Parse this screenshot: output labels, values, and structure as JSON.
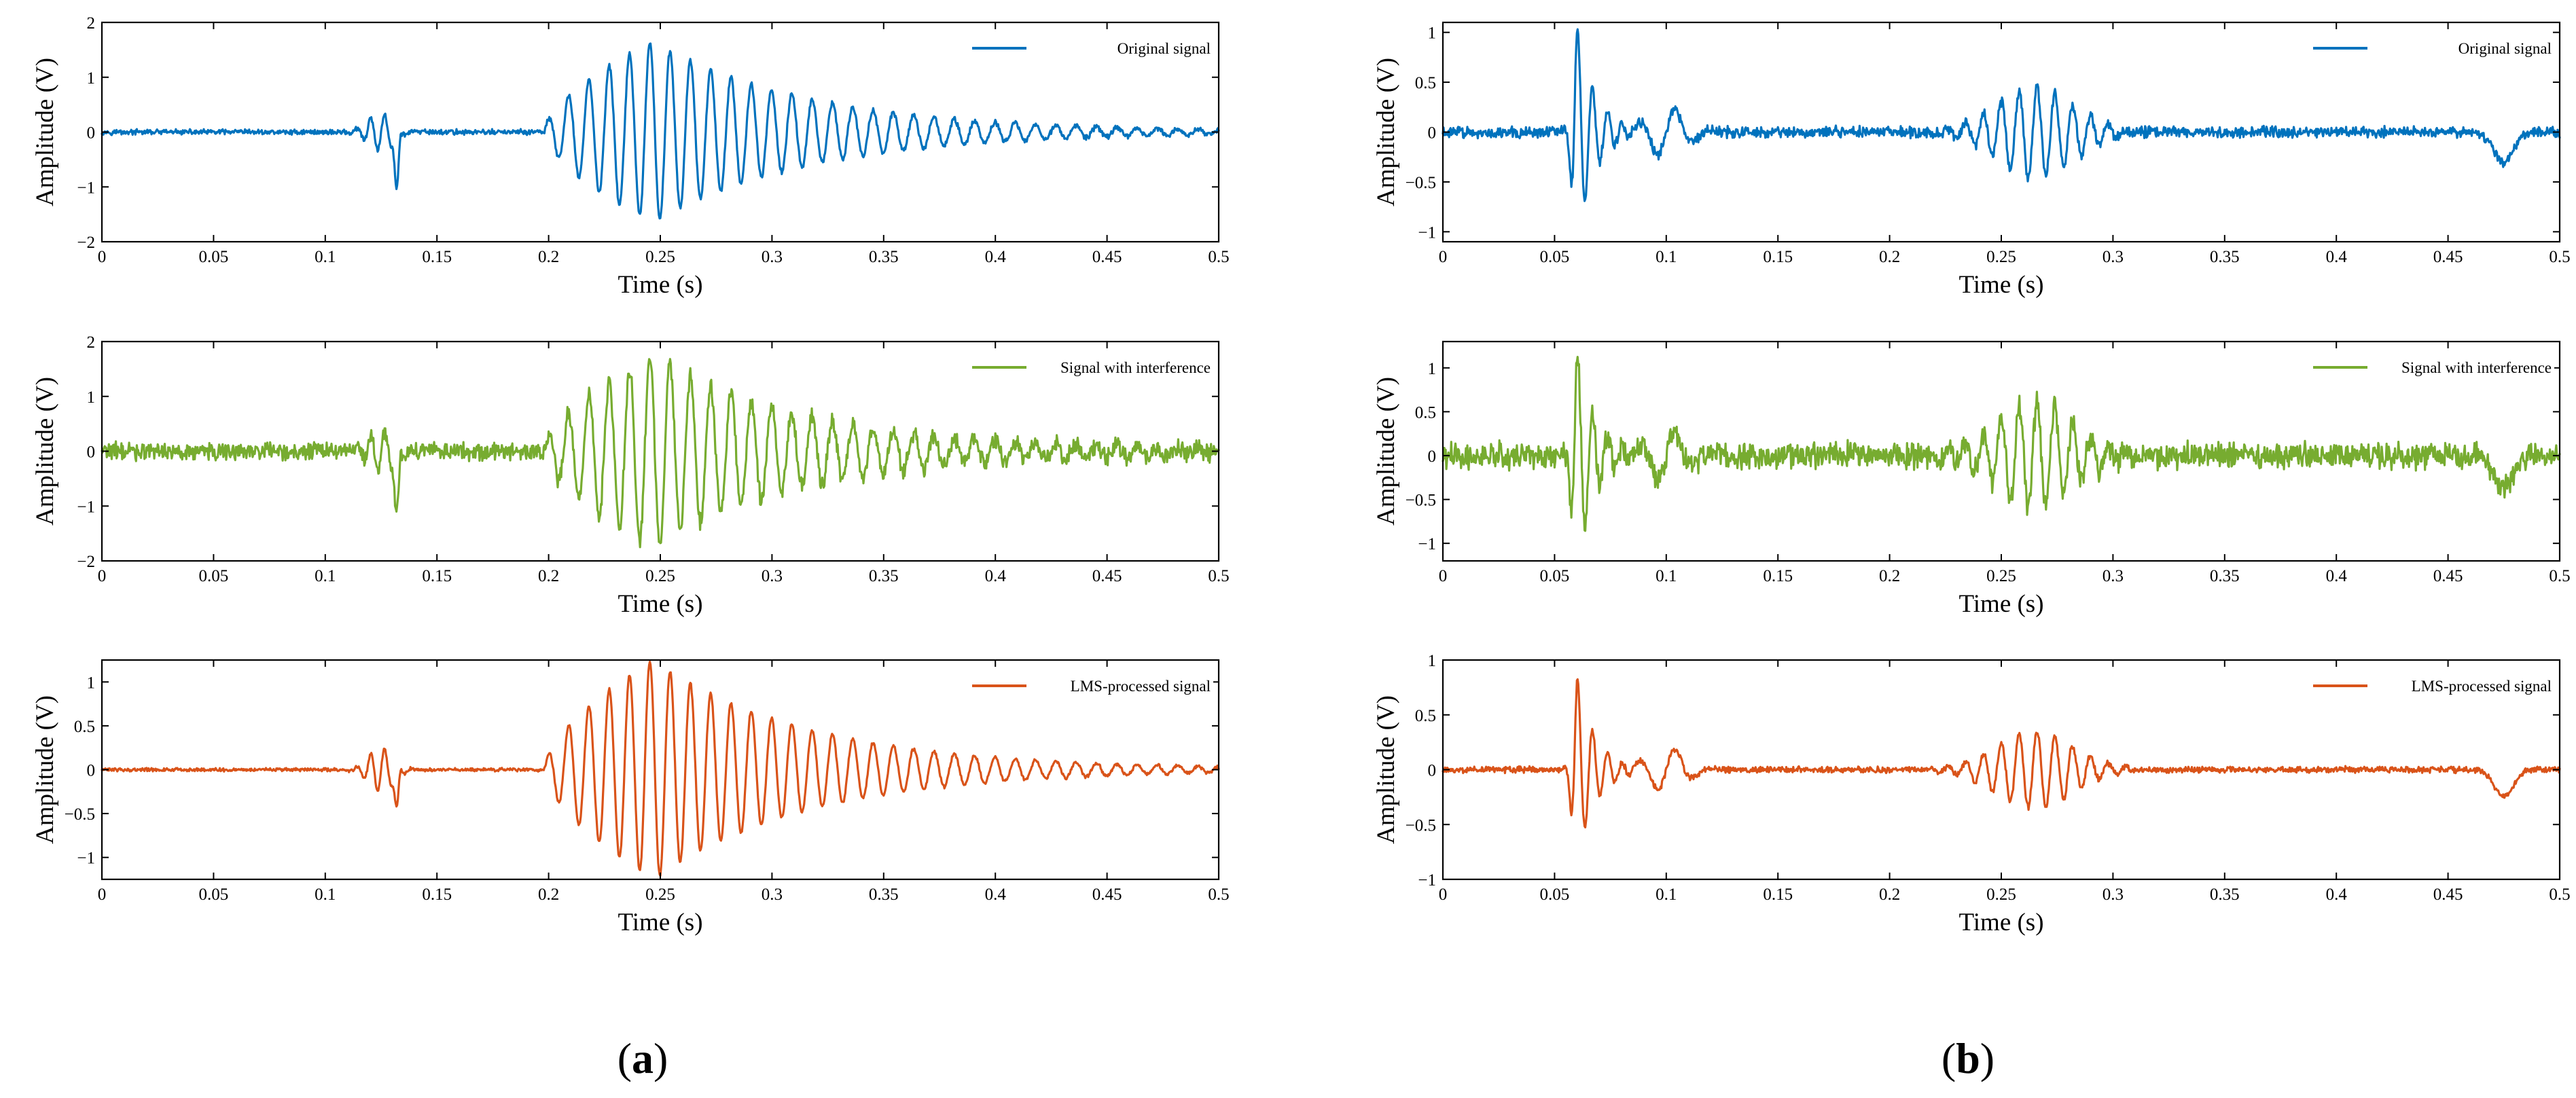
{
  "panels": [
    {
      "label_open": "(",
      "label_letter": "a",
      "label_close": ")"
    },
    {
      "label_open": "(",
      "label_letter": "b",
      "label_close": ")"
    }
  ],
  "colors": {
    "original": "#0072BD",
    "interference": "#77AC30",
    "lms": "#D95319"
  },
  "chart_data": [
    {
      "type": "line",
      "panel": "a",
      "row": 1,
      "xlabel": "Time (s)",
      "ylabel": "Amplitude (V)",
      "xlim": [
        0,
        0.5
      ],
      "ylim": [
        -2,
        2
      ],
      "xticks": [
        "0",
        "0.05",
        "0.1",
        "0.15",
        "0.2",
        "0.25",
        "0.3",
        "0.35",
        "0.4",
        "0.45",
        "0.5"
      ],
      "yticks": [
        {
          "v": -2,
          "label": "−2"
        },
        {
          "v": -1,
          "label": "−1"
        },
        {
          "v": 0,
          "label": "0"
        },
        {
          "v": 1,
          "label": "1"
        },
        {
          "v": 2,
          "label": "2"
        }
      ],
      "legend": "top-right",
      "grid": false,
      "series": [
        {
          "name": "Original signal",
          "color": "#0072BD",
          "envelope": {
            "noise": 0.05,
            "burst1": {
              "t": 0.125,
              "amp": 0.35
            },
            "spike": {
              "t": 0.132,
              "amp": -1.15
            },
            "main": {
              "start": 0.198,
              "peak_t": 0.247,
              "peak": 1.65,
              "end": 0.44,
              "freq_hz": 110
            }
          }
        }
      ]
    },
    {
      "type": "line",
      "panel": "a",
      "row": 2,
      "xlabel": "Time (s)",
      "ylabel": "Amplitude (V)",
      "xlim": [
        0,
        0.5
      ],
      "ylim": [
        -2,
        2
      ],
      "xticks": [
        "0",
        "0.05",
        "0.1",
        "0.15",
        "0.2",
        "0.25",
        "0.3",
        "0.35",
        "0.4",
        "0.45",
        "0.5"
      ],
      "yticks": [
        {
          "v": -2,
          "label": "−2"
        },
        {
          "v": -1,
          "label": "−1"
        },
        {
          "v": 0,
          "label": "0"
        },
        {
          "v": 1,
          "label": "1"
        },
        {
          "v": 2,
          "label": "2"
        }
      ],
      "legend": "top-right",
      "grid": false,
      "series": [
        {
          "name": "Signal with interference",
          "color": "#77AC30",
          "envelope": {
            "noise": 0.17,
            "burst1": {
              "t": 0.125,
              "amp": 0.4
            },
            "spike": {
              "t": 0.132,
              "amp": -1.25
            },
            "main": {
              "start": 0.198,
              "peak_t": 0.247,
              "peak": 1.75,
              "end": 0.44,
              "freq_hz": 110
            }
          }
        }
      ]
    },
    {
      "type": "line",
      "panel": "a",
      "row": 3,
      "xlabel": "Time (s)",
      "ylabel": "Amplitude (V)",
      "xlim": [
        0,
        0.5
      ],
      "ylim": [
        -1.25,
        1.25
      ],
      "xticks": [
        "0",
        "0.05",
        "0.1",
        "0.15",
        "0.2",
        "0.25",
        "0.3",
        "0.35",
        "0.4",
        "0.45",
        "0.5"
      ],
      "yticks": [
        {
          "v": -1,
          "label": "−1"
        },
        {
          "v": -0.5,
          "label": "−0.5"
        },
        {
          "v": 0,
          "label": "0"
        },
        {
          "v": 0.5,
          "label": "0.5"
        },
        {
          "v": 1,
          "label": "1"
        }
      ],
      "legend": "top-right",
      "grid": false,
      "series": [
        {
          "name": "LMS-processed signal",
          "color": "#D95319",
          "envelope": {
            "noise": 0.02,
            "burst1": {
              "t": 0.125,
              "amp": 0.25
            },
            "spike": {
              "t": 0.132,
              "amp": -0.5
            },
            "main": {
              "start": 0.198,
              "peak_t": 0.247,
              "peak": 1.25,
              "end": 0.44,
              "freq_hz": 110
            }
          }
        }
      ]
    },
    {
      "type": "line",
      "panel": "b",
      "row": 1,
      "xlabel": "Time (s)",
      "ylabel": "Amplitude (V)",
      "xlim": [
        0,
        0.5
      ],
      "ylim": [
        -1.1,
        1.1
      ],
      "xticks": [
        "0",
        "0.05",
        "0.1",
        "0.15",
        "0.2",
        "0.25",
        "0.3",
        "0.35",
        "0.4",
        "0.45",
        "0.5"
      ],
      "yticks": [
        {
          "v": -1,
          "label": "−1"
        },
        {
          "v": -0.5,
          "label": "−0.5"
        },
        {
          "v": 0,
          "label": "0"
        },
        {
          "v": 0.5,
          "label": "0.5"
        },
        {
          "v": 1,
          "label": "1"
        }
      ],
      "legend": "top-right",
      "grid": false,
      "series": [
        {
          "name": "Original signal",
          "color": "#0072BD",
          "envelope": {
            "noise": 0.06,
            "impulse": {
              "t": 0.06,
              "amp": 1.1
            },
            "wave2": {
              "t": 0.1,
              "amp": 0.25
            },
            "burst": {
              "start": 0.22,
              "end": 0.31,
              "amp": 0.45
            },
            "dip": {
              "t": 0.475,
              "amp": -0.3
            }
          }
        }
      ]
    },
    {
      "type": "line",
      "panel": "b",
      "row": 2,
      "xlabel": "Time (s)",
      "ylabel": "Amplitude (V)",
      "xlim": [
        0,
        0.5
      ],
      "ylim": [
        -1.2,
        1.3
      ],
      "xticks": [
        "0",
        "0.05",
        "0.1",
        "0.15",
        "0.2",
        "0.25",
        "0.3",
        "0.35",
        "0.4",
        "0.45",
        "0.5"
      ],
      "yticks": [
        {
          "v": -1,
          "label": "−1"
        },
        {
          "v": -0.5,
          "label": "−0.5"
        },
        {
          "v": 0,
          "label": "0"
        },
        {
          "v": 0.5,
          "label": "0.5"
        },
        {
          "v": 1,
          "label": "1"
        }
      ],
      "legend": "top-right",
      "grid": false,
      "series": [
        {
          "name": "Signal with interference",
          "color": "#77AC30",
          "envelope": {
            "noise": 0.16,
            "impulse": {
              "t": 0.06,
              "amp": 1.25
            },
            "wave2": {
              "t": 0.1,
              "amp": 0.3
            },
            "burst": {
              "start": 0.22,
              "end": 0.31,
              "amp": 0.6
            },
            "dip": {
              "t": 0.475,
              "amp": -0.35
            }
          }
        }
      ]
    },
    {
      "type": "line",
      "panel": "b",
      "row": 3,
      "xlabel": "Time (s)",
      "ylabel": "Amplitude (V)",
      "xlim": [
        0,
        0.5
      ],
      "ylim": [
        -1,
        1
      ],
      "xticks": [
        "0",
        "0.05",
        "0.1",
        "0.15",
        "0.2",
        "0.25",
        "0.3",
        "0.35",
        "0.4",
        "0.45",
        "0.5"
      ],
      "yticks": [
        {
          "v": -1,
          "label": "−1"
        },
        {
          "v": -0.5,
          "label": "−0.5"
        },
        {
          "v": 0,
          "label": "0"
        },
        {
          "v": 0.5,
          "label": "0.5"
        },
        {
          "v": 1,
          "label": "1"
        }
      ],
      "legend": "top-right",
      "grid": false,
      "series": [
        {
          "name": "LMS-processed signal",
          "color": "#D95319",
          "envelope": {
            "noise": 0.03,
            "impulse": {
              "t": 0.06,
              "amp": 0.85
            },
            "wave2": {
              "t": 0.1,
              "amp": 0.2
            },
            "burst": {
              "start": 0.22,
              "end": 0.31,
              "amp": 0.35
            },
            "dip": {
              "t": 0.475,
              "amp": -0.25
            }
          }
        }
      ]
    }
  ]
}
